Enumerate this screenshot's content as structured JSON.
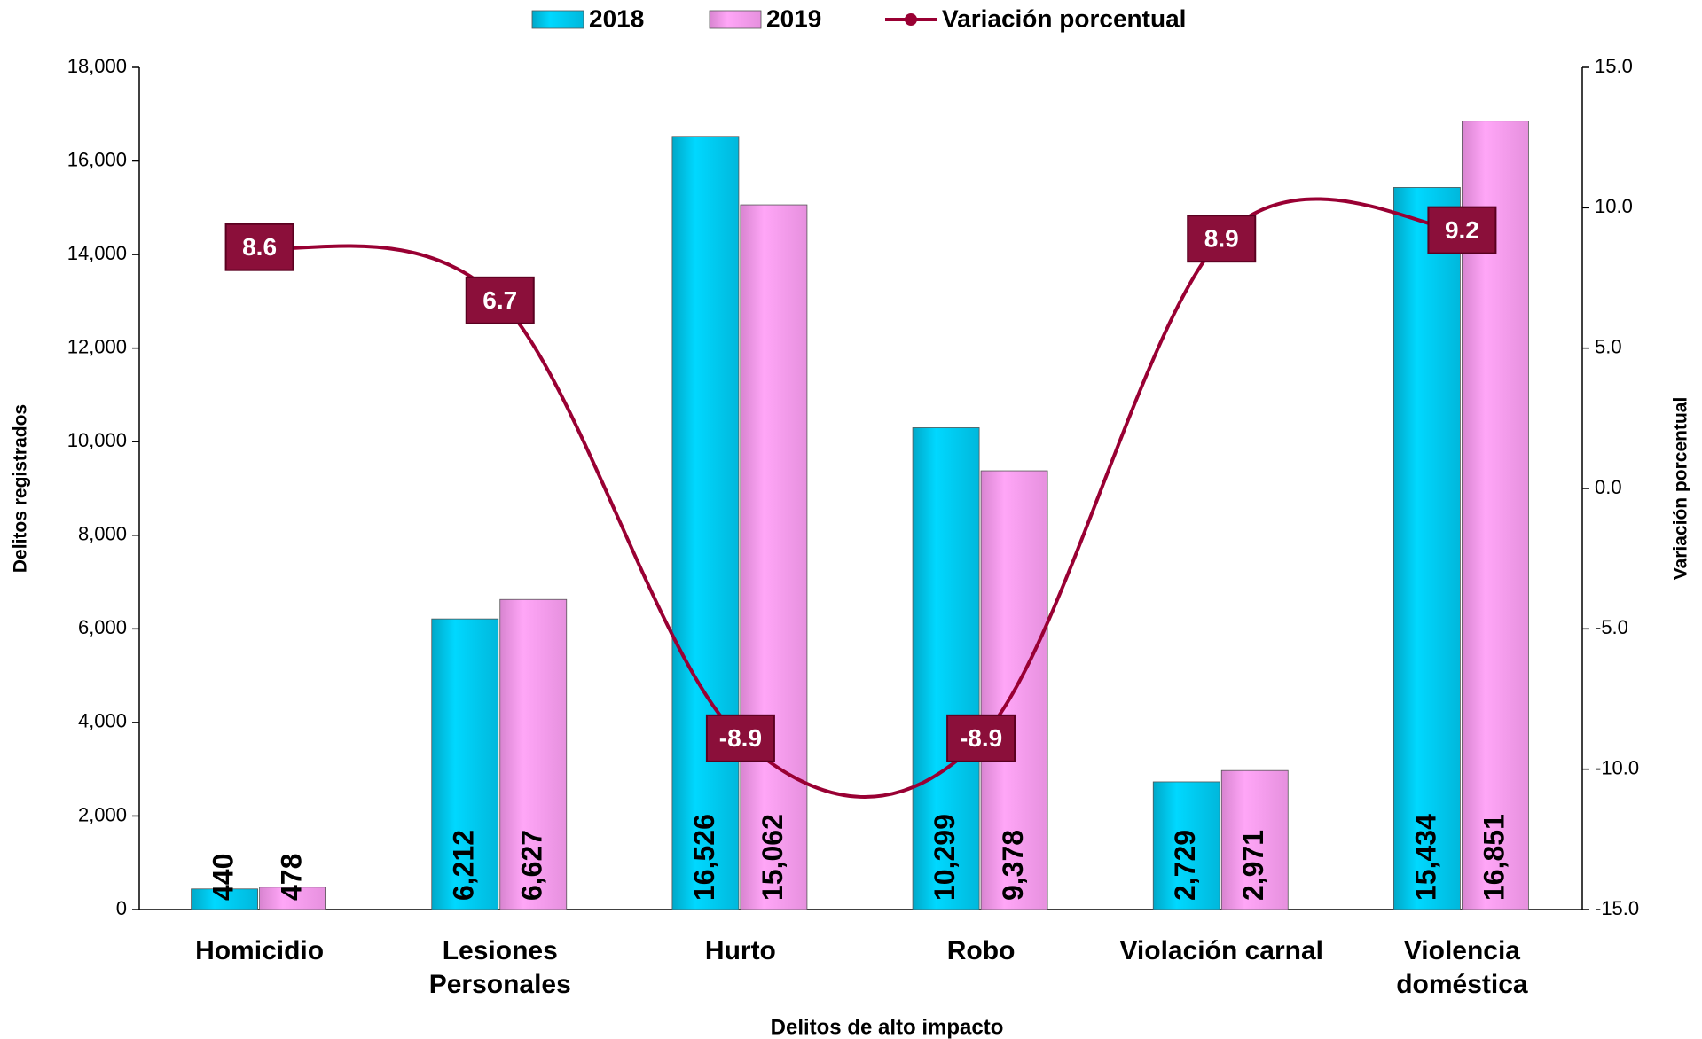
{
  "chart_data": {
    "type": "bar",
    "categories": [
      "Homicidio",
      "Lesiones Personales",
      "Hurto",
      "Robo",
      "Violación carnal",
      "Violencia doméstica"
    ],
    "series": [
      {
        "name": "2018",
        "color": "#00d8ff",
        "values": [
          440,
          6212,
          16526,
          10299,
          2729,
          15434
        ],
        "value_labels": [
          "440",
          "6,212",
          "16,526",
          "10,299",
          "2,729",
          "15,434"
        ]
      },
      {
        "name": "2019",
        "color": "#ffa6f7",
        "values": [
          478,
          6627,
          15062,
          9378,
          2971,
          16851
        ],
        "value_labels": [
          "478",
          "6,627",
          "15,062",
          "9,378",
          "2,971",
          "16,851"
        ]
      },
      {
        "name": "Variación porcentual",
        "type": "line",
        "axis": "y2",
        "color": "#990033",
        "values": [
          8.6,
          6.7,
          -8.9,
          -8.9,
          8.9,
          9.2
        ]
      }
    ],
    "xlabel": "Delitos de alto impacto",
    "ylabel": "Delitos registrados",
    "y2label": "Variación porcentual",
    "ylim": [
      0,
      18000
    ],
    "yticks": [
      0,
      {
        "value": 2000,
        "label": "2,000"
      },
      {
        "value": 4000,
        "label": "4,000"
      },
      {
        "value": 6000,
        "label": "6,000"
      },
      {
        "value": 8000,
        "label": "8,000"
      },
      {
        "value": 10000,
        "label": "10,000"
      },
      {
        "value": 12000,
        "label": "12,000"
      },
      {
        "value": 14000,
        "label": "14,000"
      },
      {
        "value": 16000,
        "label": "16,000"
      },
      {
        "value": 18000,
        "label": "18,000"
      }
    ],
    "y2lim": [
      -15,
      15
    ],
    "y2ticks": [
      {
        "value": -15,
        "label": "-15.0"
      },
      {
        "value": -10,
        "label": "-10.0"
      },
      {
        "value": -5,
        "label": "-5.0"
      },
      {
        "value": 0,
        "label": "0.0"
      },
      {
        "value": 5,
        "label": "5.0"
      },
      {
        "value": 10,
        "label": "10.0"
      },
      {
        "value": 15,
        "label": "15.0"
      }
    ],
    "legend": "top"
  }
}
